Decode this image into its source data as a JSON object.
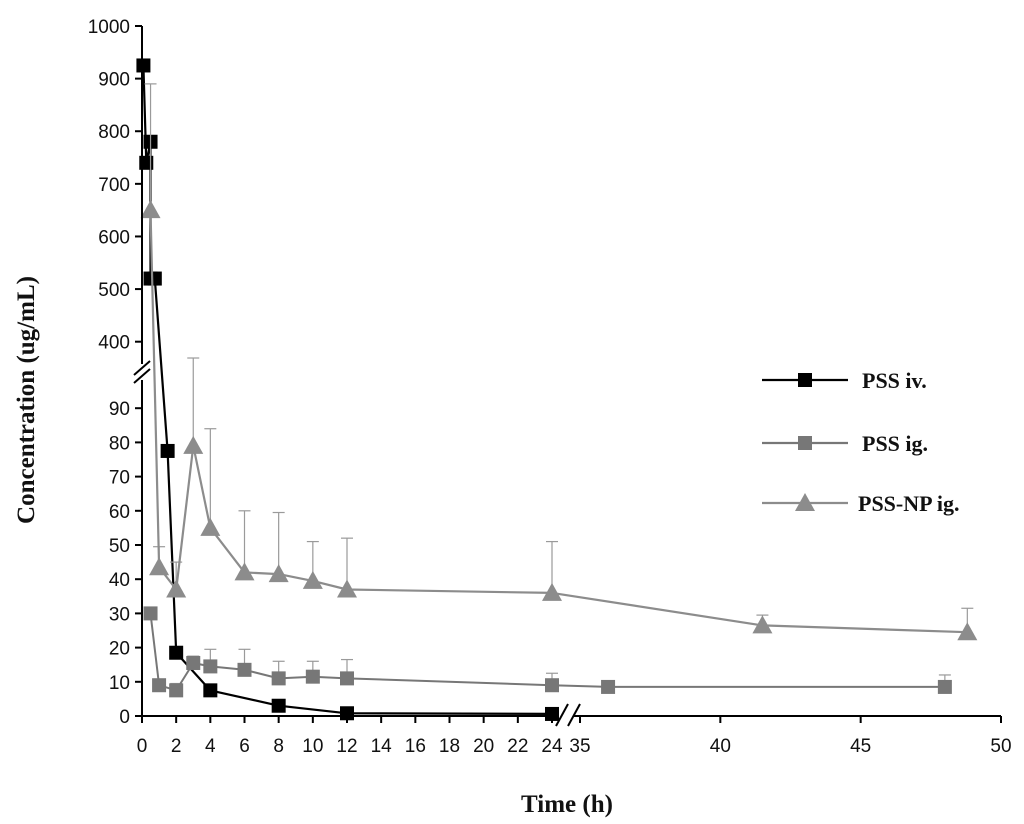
{
  "chart_data": {
    "type": "line",
    "xlabel": "Time (h)",
    "ylabel": "Concentration (ug/mL)",
    "x_axis": {
      "broken": true,
      "segment1": {
        "range": [
          0,
          24
        ],
        "ticks": [
          0,
          2,
          4,
          6,
          8,
          10,
          12,
          14,
          16,
          18,
          20,
          22,
          24
        ]
      },
      "segment2": {
        "range": [
          35,
          50
        ],
        "ticks": [
          35,
          40,
          45,
          50
        ]
      }
    },
    "y_axis": {
      "broken": true,
      "lower": {
        "range": [
          0,
          100
        ],
        "ticks": [
          0,
          10,
          20,
          30,
          40,
          50,
          60,
          70,
          80,
          90
        ]
      },
      "upper": {
        "range": [
          350,
          1000
        ],
        "ticks": [
          400,
          500,
          600,
          700,
          800,
          900,
          1000
        ]
      }
    },
    "grid": false,
    "legend_position": "right",
    "series": [
      {
        "name": "PSS iv.",
        "color": "#000000",
        "marker": "square",
        "points": [
          {
            "x": 0.083,
            "y": 925
          },
          {
            "x": 0.25,
            "y": 740
          },
          {
            "x": 0.5,
            "y": 780
          },
          {
            "x": 0.5,
            "y": 520
          },
          {
            "x": 0.75,
            "y": 520
          },
          {
            "x": 1.5,
            "y": 77.5
          },
          {
            "x": 2,
            "y": 18.5
          },
          {
            "x": 4,
            "y": 7.5
          },
          {
            "x": 8,
            "y": 3
          },
          {
            "x": 12,
            "y": 0.8
          },
          {
            "x": 24,
            "y": 0.6
          }
        ]
      },
      {
        "name": "PSS ig.",
        "color": "#777777",
        "marker": "square",
        "points": [
          {
            "x": 0.5,
            "y": 30,
            "err": 0
          },
          {
            "x": 1,
            "y": 9,
            "err": 0
          },
          {
            "x": 2,
            "y": 7.5,
            "err": 2
          },
          {
            "x": 3,
            "y": 15.5,
            "err": 2
          },
          {
            "x": 4,
            "y": 14.5,
            "err": 5
          },
          {
            "x": 6,
            "y": 13.5,
            "err": 6
          },
          {
            "x": 8,
            "y": 11,
            "err": 5
          },
          {
            "x": 10,
            "y": 11.5,
            "err": 4.5
          },
          {
            "x": 12,
            "y": 11,
            "err": 5.5
          },
          {
            "x": 24,
            "y": 9,
            "err": 3.5
          },
          {
            "x": 36,
            "y": 8.5,
            "err": 0
          },
          {
            "x": 48,
            "y": 8.5,
            "err": 3.5
          }
        ]
      },
      {
        "name": "PSS-NP ig.",
        "color": "#8c8c8c",
        "marker": "triangle",
        "points": [
          {
            "x": 0.5,
            "y": 650,
            "err": 240
          },
          {
            "x": 1,
            "y": 43.5,
            "err": 6
          },
          {
            "x": 2,
            "y": 37,
            "err": 8
          },
          {
            "x": 3,
            "y": 79,
            "err": 290
          },
          {
            "x": 4,
            "y": 55,
            "err": 29
          },
          {
            "x": 6,
            "y": 42,
            "err": 18
          },
          {
            "x": 8,
            "y": 41.5,
            "err": 18
          },
          {
            "x": 10,
            "y": 39.5,
            "err": 11.5
          },
          {
            "x": 12,
            "y": 37,
            "err": 15
          },
          {
            "x": 24,
            "y": 36,
            "err": 15
          },
          {
            "x": 41.5,
            "y": 26.5,
            "err": 3
          },
          {
            "x": 48.8,
            "y": 24.5,
            "err": 7
          }
        ]
      }
    ]
  }
}
